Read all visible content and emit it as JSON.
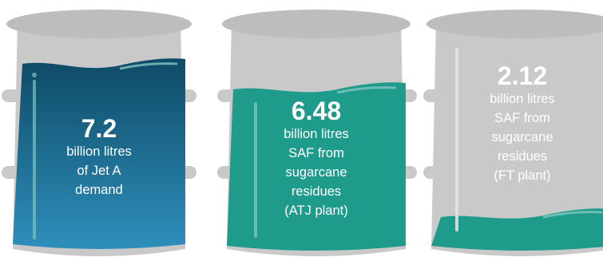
{
  "barrels": [
    {
      "value": "7.2",
      "lines": [
        "billion litres",
        "of Jet A",
        "demand"
      ],
      "fill_level": 1.0,
      "fill_color_top": "#0e4a66",
      "fill_color_bottom": "#2e8fbb",
      "text_color": "#ffffff"
    },
    {
      "value": "6.48",
      "lines": [
        "billion litres",
        "SAF from",
        "sugarcane",
        "residues",
        "(ATJ plant)"
      ],
      "fill_level": 0.9,
      "fill_color_top": "#1f9b8c",
      "fill_color_bottom": "#1f9b8c",
      "text_color": "#ffffff"
    },
    {
      "value": "2.12",
      "lines": [
        "billion litres",
        "SAF from",
        "sugarcane",
        "residues",
        "(FT plant)"
      ],
      "fill_level": 0.294,
      "fill_color_top": "#1f9b8c",
      "fill_color_bottom": "#1f9b8c",
      "text_color": "#ffffff"
    }
  ],
  "colors": {
    "barrel_body": "#c9c9c9",
    "barrel_rim": "#bdbdbd",
    "highlight": "#7fc6c0"
  }
}
